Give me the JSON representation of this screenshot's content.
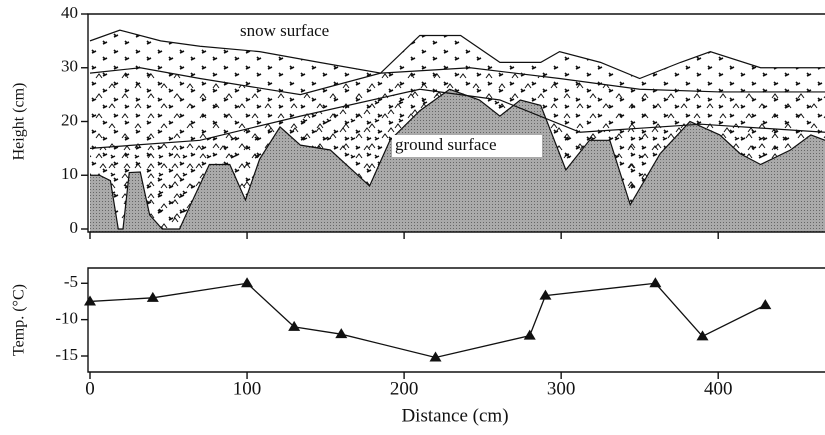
{
  "chart_data": [
    {
      "type": "area",
      "ylabel": "Height (cm)",
      "annotations": [
        "snow surface",
        "ground surface"
      ],
      "xlim": [
        0,
        468
      ],
      "ylim": [
        0,
        40
      ],
      "yticks": [
        0,
        10,
        20,
        30,
        40
      ],
      "series": [
        {
          "x": [
            0,
            19,
            45,
            70,
            108,
            146,
            185,
            210,
            236,
            261,
            287,
            299,
            325,
            350,
            376,
            395,
            427,
            468
          ],
          "values": [
            35,
            37,
            35,
            34,
            33,
            31,
            29,
            36,
            36,
            31,
            31,
            33,
            31,
            28,
            31,
            33,
            30,
            30
          ]
        },
        {
          "x": [
            0,
            32,
            70,
            134,
            185,
            242,
            299,
            350,
            401,
            468
          ],
          "values": [
            29,
            30,
            28,
            25,
            29,
            30,
            28,
            26,
            25.5,
            25.5
          ]
        },
        {
          "x": [
            0,
            70,
            134,
            210,
            261,
            312,
            389,
            468
          ],
          "values": [
            15,
            16.5,
            21,
            26,
            24,
            18,
            19.5,
            18
          ]
        },
        {
          "x": [
            0,
            6,
            13,
            18,
            21,
            25,
            32,
            38,
            46,
            57,
            64,
            76,
            89,
            99,
            108,
            121,
            134,
            153,
            178,
            191,
            210,
            229,
            248,
            261,
            274,
            287,
            303,
            318,
            331,
            344,
            363,
            382,
            401,
            414,
            427,
            446,
            459,
            468
          ],
          "values": [
            10,
            10,
            9,
            0,
            0,
            10.5,
            10.6,
            2.6,
            0,
            0,
            4.5,
            12,
            12,
            5.4,
            13,
            19,
            15.6,
            14.7,
            8,
            16.5,
            22,
            26,
            24,
            21,
            24,
            23,
            11,
            16.5,
            16.5,
            4.5,
            14,
            20,
            17.5,
            14,
            12,
            14.7,
            17.5,
            16.5
          ]
        }
      ]
    },
    {
      "type": "line",
      "ylabel": "Temp. (°C)",
      "xlabel": "Distance (cm)",
      "color": "#111",
      "marker": "triangle",
      "xlim": [
        0,
        468
      ],
      "ylim": [
        -17.2,
        -2.9
      ],
      "xticks": [
        0,
        100,
        200,
        300,
        400
      ],
      "yticks": [
        -5,
        -10,
        -15
      ],
      "x": [
        0,
        40,
        100,
        130,
        160,
        220,
        280,
        290,
        360,
        390,
        430
      ],
      "values": [
        -7.5,
        -7,
        -5,
        -11,
        -12,
        -15.2,
        -12.2,
        -6.7,
        -5,
        -12.3,
        -8
      ]
    }
  ]
}
